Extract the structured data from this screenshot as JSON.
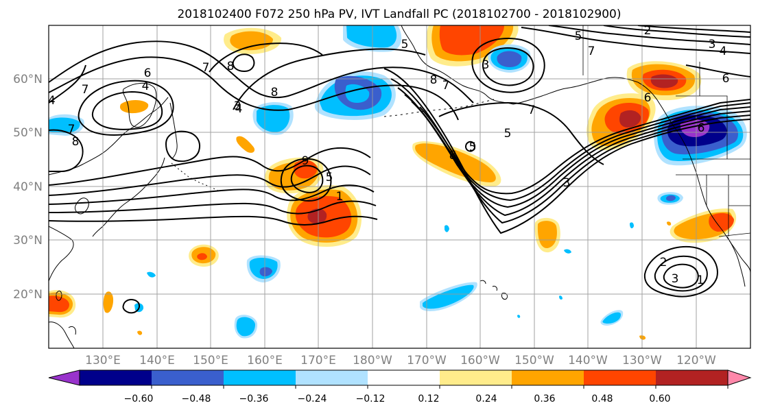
{
  "title": "2018102400 F072 250 hPa PV, IVT Landfall PC (2018102700 - 2018102900)",
  "map": {
    "lat_labels": [
      "60°N",
      "50°N",
      "40°N",
      "30°N",
      "20°N"
    ],
    "lon_labels": [
      "130°E",
      "140°E",
      "150°E",
      "160°E",
      "170°E",
      "180°W",
      "170°W",
      "160°W",
      "150°W",
      "140°W",
      "130°W",
      "120°W"
    ],
    "contour_labels": [
      "6",
      "4",
      "7",
      "7",
      "8",
      "8",
      "7",
      "8",
      "9",
      "5",
      "4",
      "1",
      "5",
      "8",
      "7",
      "8",
      "7",
      "3",
      "3",
      "6",
      "5",
      "7",
      "6",
      "2",
      "3",
      "4",
      "6",
      "5",
      "5",
      "4",
      "3",
      "2",
      "3",
      "1"
    ]
  },
  "colorbar": {
    "colors": [
      "#9933cc",
      "#00008b",
      "#3a5fcd",
      "#00bfff",
      "#b0e2ff",
      "#ffffff",
      "#ffec8b",
      "#ffa500",
      "#ff4500",
      "#b22222",
      "#ff88aa"
    ],
    "tick_labels": [
      "−0.60",
      "−0.48",
      "−0.36",
      "−0.24",
      "−0.12",
      "0.12",
      "0.24",
      "0.36",
      "0.48",
      "0.60"
    ]
  }
}
